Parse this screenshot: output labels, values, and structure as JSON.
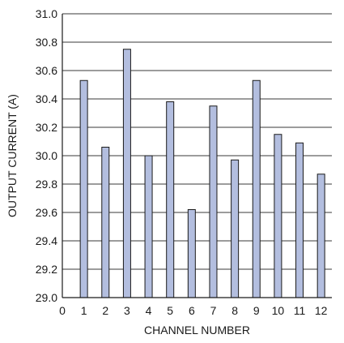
{
  "chart_data": {
    "type": "bar",
    "title": "",
    "xlabel": "CHANNEL NUMBER",
    "ylabel": "OUTPUT CURRENT (A)",
    "categories": [
      "1",
      "2",
      "3",
      "4",
      "5",
      "6",
      "7",
      "8",
      "9",
      "10",
      "11",
      "12"
    ],
    "values": [
      30.53,
      30.06,
      30.75,
      30.0,
      30.38,
      29.62,
      30.35,
      29.97,
      30.53,
      30.15,
      30.09,
      29.87
    ],
    "xlim": [
      0,
      12.5
    ],
    "ylim": [
      29.0,
      31.0
    ],
    "x_ticks": [
      "0",
      "1",
      "2",
      "3",
      "4",
      "5",
      "6",
      "7",
      "8",
      "9",
      "10",
      "11",
      "12"
    ],
    "y_ticks": [
      "29.0",
      "29.2",
      "29.4",
      "29.6",
      "29.8",
      "30.0",
      "30.2",
      "30.4",
      "30.6",
      "30.8",
      "31.0"
    ],
    "grid": "horizontal",
    "bar_color": "#b3bedf",
    "bar_edge_color": "#1a1a1a"
  }
}
